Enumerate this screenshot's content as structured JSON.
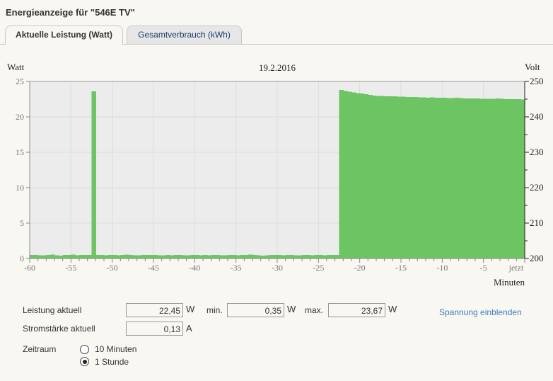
{
  "header": {
    "title": "Energieanzeige für \"546E TV\""
  },
  "tabs": [
    {
      "label": "Aktuelle Leistung (Watt)",
      "active": true
    },
    {
      "label": "Gesamtverbrauch (kWh)",
      "active": false
    }
  ],
  "chart_data": {
    "type": "bar",
    "title": "19.2.2016",
    "ylabel": "Watt",
    "y2label": "Volt",
    "xlabel": "Minuten",
    "xlim": [
      -60,
      0
    ],
    "ylim": [
      0,
      25
    ],
    "y2lim": [
      200,
      250
    ],
    "yticks": [
      "0",
      "5",
      "10",
      "15",
      "20",
      "25"
    ],
    "y2ticks": [
      "200",
      "210",
      "220",
      "230",
      "240",
      "250"
    ],
    "xticks": [
      "-60",
      "-55",
      "-50",
      "-45",
      "-40",
      "-35",
      "-30",
      "-25",
      "-20",
      "-15",
      "-10",
      "-5",
      "jetzt"
    ],
    "grid": true,
    "bar_color": "#6cc462",
    "x_step_minutes": 0.5,
    "values": [
      0.5,
      0.5,
      0.45,
      0.45,
      0.5,
      0.55,
      0.45,
      0.4,
      0.5,
      0.5,
      0.55,
      0.45,
      0.5,
      0.5,
      0.5,
      23.6,
      0.5,
      0.5,
      0.45,
      0.5,
      0.5,
      0.45,
      0.5,
      0.55,
      0.5,
      0.45,
      0.45,
      0.5,
      0.5,
      0.5,
      0.5,
      0.45,
      0.45,
      0.5,
      0.45,
      0.5,
      0.5,
      0.45,
      0.45,
      0.5,
      0.5,
      0.45,
      0.5,
      0.45,
      0.5,
      0.5,
      0.45,
      0.45,
      0.5,
      0.5,
      0.45,
      0.5,
      0.5,
      0.55,
      0.5,
      0.45,
      0.4,
      0.45,
      0.5,
      0.5,
      0.5,
      0.45,
      0.5,
      0.5,
      0.45,
      0.45,
      0.5,
      0.5,
      0.45,
      0.5,
      0.5,
      0.45,
      0.5,
      0.5,
      0.5,
      23.8,
      23.65,
      23.55,
      23.45,
      23.35,
      23.3,
      23.2,
      23.1,
      23.0,
      22.95,
      22.95,
      22.9,
      22.9,
      22.9,
      22.85,
      22.85,
      22.8,
      22.8,
      22.8,
      22.75,
      22.75,
      22.7,
      22.75,
      22.7,
      22.7,
      22.7,
      22.65,
      22.65,
      22.7,
      22.65,
      22.6,
      22.6,
      22.6,
      22.6,
      22.55,
      22.55,
      22.55,
      22.55,
      22.6,
      22.55,
      22.5,
      22.5,
      22.5,
      22.5,
      22.45
    ]
  },
  "stats": {
    "power_label": "Leistung aktuell",
    "power_value": "22,45",
    "power_unit": "W",
    "min_label": "min.",
    "min_value": "0,35",
    "min_unit": "W",
    "max_label": "max.",
    "max_value": "23,67",
    "max_unit": "W",
    "current_label": "Stromstärke aktuell",
    "current_value": "0,13",
    "current_unit": "A",
    "voltage_link": "Spannung einblenden"
  },
  "timerange": {
    "label": "Zeitraum",
    "options": [
      {
        "label": "10 Minuten",
        "selected": false
      },
      {
        "label": "1 Stunde",
        "selected": true
      }
    ]
  }
}
